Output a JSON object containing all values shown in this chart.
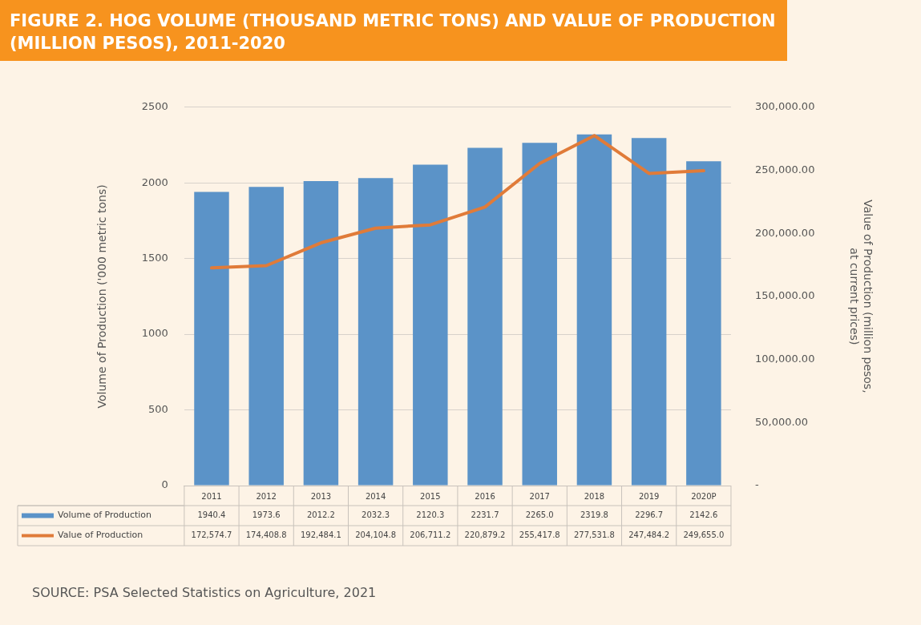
{
  "chart_data": {
    "type": "bar",
    "title": "FIGURE 2. HOG VOLUME (THOUSAND METRIC TONS) AND VALUE OF PRODUCTION (MILLION PESOS), 2011-2020",
    "ylabel": "Volume of Production ('000 metric tons)",
    "y2label": "Value of Production (million pesos, at current prices)",
    "categories": [
      "2011",
      "2012",
      "2013",
      "2014",
      "2015",
      "2016",
      "2017",
      "2018",
      "2019",
      "2020P"
    ],
    "series": [
      {
        "name": "Volume of Production",
        "color": "#5b93c8",
        "values": [
          1940.4,
          1973.6,
          2012.2,
          2032.3,
          2120.3,
          2231.7,
          2265.0,
          2319.8,
          2296.7,
          2142.6
        ],
        "value_labels": [
          "1940.4",
          "1973.6",
          "2012.2",
          "2032.3",
          "2120.3",
          "2231.7",
          "2265.0",
          "2319.8",
          "2296.7",
          "2142.6"
        ]
      },
      {
        "name": "Value of Production",
        "type": "line",
        "axis": "y2",
        "color": "#e07b39",
        "values": [
          172574.7,
          174408.8,
          192484.1,
          204104.8,
          206711.2,
          220879.2,
          255417.8,
          277531.8,
          247484.2,
          249655.0
        ],
        "value_labels": [
          "172,574.7",
          "174,408.8",
          "192,484.1",
          "204,104.8",
          "206,711.2",
          "220,879.2",
          "255,417.8",
          "277,531.8",
          "247,484.2",
          "249,655.0"
        ]
      }
    ],
    "ylim": [
      0,
      2500
    ],
    "yticks": [
      0,
      500,
      1000,
      1500,
      2000,
      2500
    ],
    "y2lim": [
      0,
      300000
    ],
    "y2ticks": [
      {
        "value": 0,
        "label": "-"
      },
      {
        "value": 50000,
        "label": "50,000.00"
      },
      {
        "value": 100000,
        "label": "100,000.00"
      },
      {
        "value": 150000,
        "label": "150,000.00"
      },
      {
        "value": 200000,
        "label": "200,000.00"
      },
      {
        "value": 250000,
        "label": "250,000.00"
      },
      {
        "value": 300000,
        "label": "300,000.00"
      }
    ],
    "grid": "y",
    "legend": "bottom",
    "marker": "none",
    "line_style": "solid",
    "annotations": [
      "SOURCE: PSA Selected Statistics on Agriculture, 2021"
    ]
  }
}
